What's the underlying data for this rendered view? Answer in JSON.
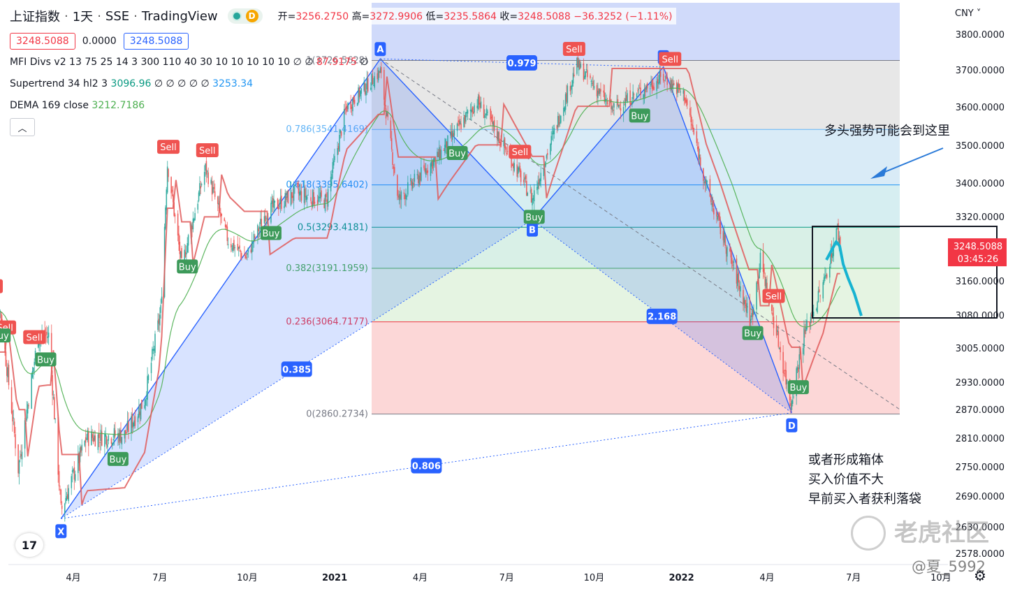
{
  "header": {
    "symbol": "上证指数",
    "interval": "1天",
    "exchange": "SSE",
    "platform": "TradingView",
    "badge": "D",
    "open_label": "开=",
    "open": "3256.2750",
    "high_label": "高=",
    "high": "3272.9906",
    "low_label": "低=",
    "low": "3235.5864",
    "close_label": "收=",
    "close": "3248.5088",
    "change": "−36.3252 (−1.11%)",
    "sell_price": "3248.5088",
    "spread": "0.0000",
    "buy_price": "3248.5088"
  },
  "indicators": [
    {
      "name": "MFI Divs v2 13 75 25 14 3 300 110 40 30 10 10 10 10 10",
      "values": "∅ ∅",
      "last": "87.9175",
      "tail": "∅"
    },
    {
      "name": "Supertrend 34 hl2 3",
      "values": "3096.96",
      "nulls": "∅ ∅ ∅ ∅ ∅",
      "last": "3253.34"
    },
    {
      "name": "DEMA 169 close",
      "values": "3212.7186"
    }
  ],
  "collapse_icon": "chevron-up-icon",
  "currency": "CNY",
  "last_price_tag": {
    "price": "3248.5088",
    "countdown": "03:45:26",
    "color": "#f23645"
  },
  "annotations": {
    "top": "多头强势可能会到这里",
    "bottom": [
      "或者形成箱体",
      "买入价值不大",
      "早前买入者获利落袋"
    ]
  },
  "watermark": "老虎社区",
  "username": "@夏_5992",
  "colors": {
    "up": "#26a69a",
    "down": "#ef5350",
    "sell": "#ef5350",
    "buy": "#4caf50",
    "pattern": "#2962ff",
    "teal_arrow": "#17b3d1"
  },
  "chart_data": {
    "type": "candlestick",
    "y_ticks": [
      "3800.0000",
      "3700.0000",
      "3600.0000",
      "3500.0000",
      "3400.0000",
      "3320.0000",
      "3160.0000",
      "3080.0000",
      "3005.0000",
      "2930.0000",
      "2870.0000",
      "2810.0000",
      "2750.0000",
      "2690.0000",
      "2630.0000",
      "2578.0000"
    ],
    "y_tick_values": [
      3800,
      3700,
      3600,
      3500,
      3400,
      3320,
      3160,
      3080,
      3005,
      2930,
      2870,
      2810,
      2750,
      2690,
      2630,
      2578
    ],
    "x_ticks": [
      "4月",
      "7月",
      "10月",
      "2021",
      "4月",
      "7月",
      "10月",
      "2022",
      "4月",
      "7月",
      "10月"
    ],
    "close_series": [
      {
        "t": "2020-01-02",
        "v": 3085
      },
      {
        "t": "2020-01-14",
        "v": 3106
      },
      {
        "t": "2020-02-03",
        "v": 2746
      },
      {
        "t": "2020-02-24",
        "v": 3031
      },
      {
        "t": "2020-03-06",
        "v": 3034
      },
      {
        "t": "2020-03-19",
        "v": 2660
      },
      {
        "t": "2020-04-15",
        "v": 2811
      },
      {
        "t": "2020-05-25",
        "v": 2817
      },
      {
        "t": "2020-06-15",
        "v": 2890
      },
      {
        "t": "2020-07-02",
        "v": 3090
      },
      {
        "t": "2020-07-09",
        "v": 3450
      },
      {
        "t": "2020-07-24",
        "v": 3197
      },
      {
        "t": "2020-08-18",
        "v": 3439
      },
      {
        "t": "2020-09-11",
        "v": 3260
      },
      {
        "t": "2020-09-30",
        "v": 3218
      },
      {
        "t": "2020-10-20",
        "v": 3328
      },
      {
        "t": "2020-11-20",
        "v": 3377
      },
      {
        "t": "2020-12-23",
        "v": 3356
      },
      {
        "t": "2021-01-13",
        "v": 3598
      },
      {
        "t": "2021-02-18",
        "v": 3696
      },
      {
        "t": "2021-03-09",
        "v": 3359
      },
      {
        "t": "2021-04-20",
        "v": 3472
      },
      {
        "t": "2021-05-31",
        "v": 3615
      },
      {
        "t": "2021-06-15",
        "v": 3556
      },
      {
        "t": "2021-07-28",
        "v": 3361
      },
      {
        "t": "2021-09-13",
        "v": 3715
      },
      {
        "t": "2021-10-20",
        "v": 3594
      },
      {
        "t": "2021-12-13",
        "v": 3681
      },
      {
        "t": "2022-01-04",
        "v": 3632
      },
      {
        "t": "2022-01-27",
        "v": 3394
      },
      {
        "t": "2022-03-15",
        "v": 3064
      },
      {
        "t": "2022-03-25",
        "v": 3212
      },
      {
        "t": "2022-04-26",
        "v": 2886
      },
      {
        "t": "2022-05-10",
        "v": 3035
      },
      {
        "t": "2022-05-30",
        "v": 3149
      },
      {
        "t": "2022-06-14",
        "v": 3288
      },
      {
        "t": "2022-06-17",
        "v": 3248
      }
    ],
    "fibonacci": [
      {
        "label": "1(3726.5628)",
        "value": 3726.5628
      },
      {
        "label": "0.786(3541.4169)",
        "value": 3541.4169
      },
      {
        "label": "0.618(3395.6402)",
        "value": 3395.6402
      },
      {
        "label": "0.5(3293.4181)",
        "value": 3293.4181
      },
      {
        "label": "0.382(3191.1959)",
        "value": 3191.1959
      },
      {
        "label": "0.236(3064.7177)",
        "value": 3064.7177
      },
      {
        "label": "0(2860.2734)",
        "value": 2860.2734
      }
    ],
    "harmonic": {
      "points": [
        {
          "label": "X",
          "t": "2020-03-19",
          "v": 2646
        },
        {
          "label": "A",
          "t": "2021-02-18",
          "v": 3731
        },
        {
          "label": "B",
          "t": "2021-07-28",
          "v": 3312
        },
        {
          "label": "C",
          "t": "2021-12-13",
          "v": 3708
        },
        {
          "label": "D",
          "t": "2022-04-27",
          "v": 2863
        }
      ],
      "ratios": [
        "0.385",
        "0.979",
        "2.168",
        "0.806"
      ]
    },
    "signals": [
      {
        "type": "Sell",
        "t": "2020-01-06"
      },
      {
        "type": "Sell",
        "t": "2020-01-20"
      },
      {
        "type": "Sell",
        "t": "2020-02-20"
      },
      {
        "type": "Buy",
        "t": "2020-01-15"
      },
      {
        "type": "Buy",
        "t": "2020-03-03"
      },
      {
        "type": "Buy",
        "t": "2020-05-18"
      },
      {
        "type": "Sell",
        "t": "2020-07-10"
      },
      {
        "type": "Sell",
        "t": "2020-08-20"
      },
      {
        "type": "Buy",
        "t": "2020-07-30"
      },
      {
        "type": "Buy",
        "t": "2020-10-26"
      },
      {
        "type": "Sell",
        "t": "2021-07-15"
      },
      {
        "type": "Buy",
        "t": "2021-05-10"
      },
      {
        "type": "Buy",
        "t": "2021-07-30"
      },
      {
        "type": "Sell",
        "t": "2021-09-10"
      },
      {
        "type": "Sell",
        "t": "2021-12-20"
      },
      {
        "type": "Buy",
        "t": "2021-11-18"
      },
      {
        "type": "Buy",
        "t": "2022-03-17"
      },
      {
        "type": "Sell",
        "t": "2022-04-08"
      },
      {
        "type": "Buy",
        "t": "2022-05-04"
      }
    ],
    "series_names": [
      "DEMA 169 close",
      "Supertrend 34 hl2 3"
    ]
  }
}
